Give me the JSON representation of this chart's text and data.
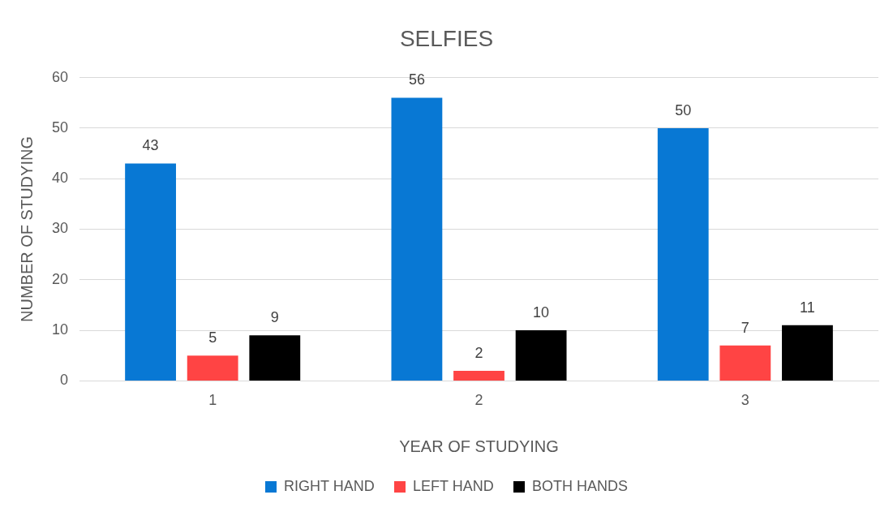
{
  "chart_data": {
    "type": "bar",
    "title": "SELFIES",
    "xlabel": "YEAR OF STUDYING",
    "ylabel": "NUMBER OF STUDYING",
    "categories": [
      "1",
      "2",
      "3"
    ],
    "series": [
      {
        "name": "RIGHT HAND",
        "color": "#0878d4",
        "values": [
          43,
          56,
          50
        ]
      },
      {
        "name": "LEFT HAND",
        "color": "#ff4444",
        "values": [
          5,
          2,
          7
        ]
      },
      {
        "name": "BOTH HANDS",
        "color": "#000000",
        "values": [
          9,
          10,
          11
        ]
      }
    ],
    "ylim": [
      0,
      60
    ],
    "yticks": [
      0,
      10,
      20,
      30,
      40,
      50,
      60
    ],
    "grid": "y",
    "legend": "bottom",
    "data_labels": true
  }
}
